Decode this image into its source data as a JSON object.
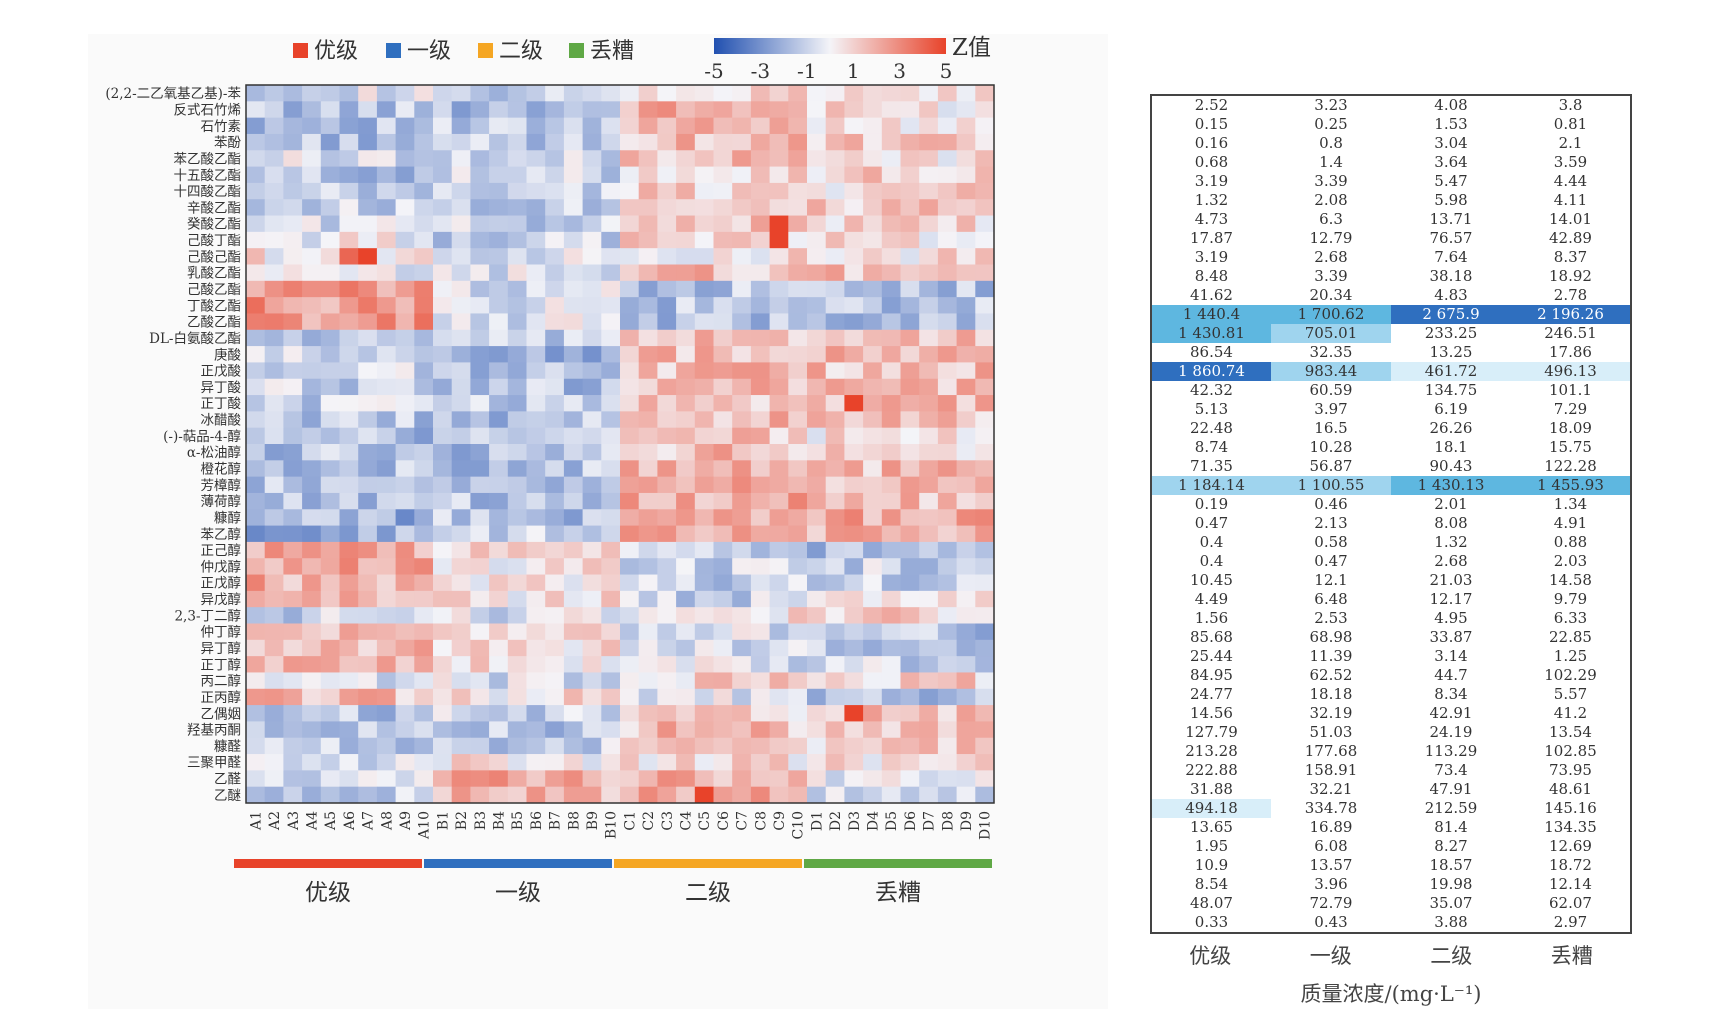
{
  "chart_data": [
    {
      "type": "heatmap",
      "legend": {
        "groups": [
          {
            "label": "优级",
            "color": "#e8432a"
          },
          {
            "label": "一级",
            "color": "#2f6fbf"
          },
          {
            "label": "二级",
            "color": "#f5a623"
          },
          {
            "label": "丢糟",
            "color": "#5fa845"
          }
        ],
        "colorbar_title": "Z值",
        "colorbar_ticks": [
          "-5",
          "-3",
          "-1",
          "1",
          "3",
          "5"
        ],
        "colorbar_range": [
          -5,
          5
        ],
        "colors": {
          "low": "#2150b0",
          "mid": "#f4f4f8",
          "high": "#e8432a"
        }
      },
      "compounds": [
        "(2,2-二乙氧基乙基)-苯",
        "反式石竹烯",
        "石竹素",
        "苯酚",
        "苯乙酸乙酯",
        "十五酸乙酯",
        "十四酸乙酯",
        "辛酸乙酯",
        "癸酸乙酯",
        "己酸丁酯",
        "己酸己酯",
        "乳酸乙酯",
        "己酸乙酯",
        "丁酸乙酯",
        "乙酸乙酯",
        "DL-白氨酸乙酯",
        "庚酸",
        "正戊酸",
        "异丁酸",
        "正丁酸",
        "冰醋酸",
        "(-)-萜品-4-醇",
        "α-松油醇",
        "橙花醇",
        "芳樟醇",
        "薄荷醇",
        "糠醇",
        "苯乙醇",
        "正己醇",
        "仲戊醇",
        "正戊醇",
        "异戊醇",
        "2,3-丁二醇",
        "仲丁醇",
        "异丁醇",
        "正丁醇",
        "丙二醇",
        "正丙醇",
        "乙偶姻",
        "羟基丙酮",
        "糠醛",
        "三聚甲醛",
        "乙醛",
        "乙醚"
      ],
      "samples": [
        "A1",
        "A2",
        "A3",
        "A4",
        "A5",
        "A6",
        "A7",
        "A8",
        "A9",
        "A10",
        "B1",
        "B2",
        "B3",
        "B4",
        "B5",
        "B6",
        "B7",
        "B8",
        "B9",
        "B10",
        "C1",
        "C2",
        "C3",
        "C4",
        "C5",
        "C6",
        "C7",
        "C8",
        "C9",
        "C10",
        "D1",
        "D2",
        "D3",
        "D4",
        "D5",
        "D6",
        "D7",
        "D8",
        "D9",
        "D10"
      ],
      "group_bars": [
        {
          "label": "优级",
          "color": "#e8432a"
        },
        {
          "label": "一级",
          "color": "#2f6fbf"
        },
        {
          "label": "二级",
          "color": "#f5a623"
        },
        {
          "label": "丢糟",
          "color": "#5fa845"
        }
      ],
      "row_group_bias": [
        [
          -0.5,
          -1.5,
          0.5,
          0.5
        ],
        [
          -1.5,
          -1.5,
          2,
          0.5
        ],
        [
          -1.5,
          -1.5,
          1.5,
          0.8
        ],
        [
          -1.5,
          -1.5,
          1.5,
          1
        ],
        [
          -0.5,
          -1,
          1.5,
          0.5
        ],
        [
          -1.5,
          -1,
          1,
          1
        ],
        [
          -1.5,
          -1,
          1,
          0.8
        ],
        [
          -1,
          -1,
          1.5,
          1
        ],
        [
          -0.5,
          -1,
          1.5,
          0.8
        ],
        [
          0,
          -1,
          1,
          0.5
        ],
        [
          0.5,
          -0.5,
          0.5,
          0.5
        ],
        [
          -0.5,
          -0.5,
          1.5,
          1.5
        ],
        [
          2.5,
          -0.5,
          -1.5,
          -1.5
        ],
        [
          2.5,
          -0.5,
          -1.5,
          -1.5
        ],
        [
          2.5,
          -0.5,
          -1.5,
          -1.5
        ],
        [
          -1.5,
          -1.5,
          1.5,
          1.5
        ],
        [
          -1,
          -2,
          1.5,
          1.5
        ],
        [
          -1,
          -1.5,
          1.5,
          1.5
        ],
        [
          -1,
          -1.5,
          1.5,
          1.5
        ],
        [
          -1,
          -1,
          1.5,
          1.5
        ],
        [
          -1.5,
          -1.5,
          1.5,
          1.5
        ],
        [
          -1.5,
          -1.5,
          1.5,
          0.5
        ],
        [
          -1.5,
          -1.5,
          1.5,
          1
        ],
        [
          -1.5,
          -1.5,
          1.5,
          1.5
        ],
        [
          -1.5,
          -1.5,
          2,
          1.5
        ],
        [
          -1.5,
          -1.5,
          2,
          1.5
        ],
        [
          -2,
          -1.5,
          2,
          2
        ],
        [
          -2,
          -1,
          2,
          2
        ],
        [
          2,
          1,
          -1,
          -2
        ],
        [
          2,
          0.5,
          -1,
          -1
        ],
        [
          2,
          0.5,
          -1,
          -1
        ],
        [
          1.5,
          0.5,
          -1,
          0.5
        ],
        [
          -1,
          -0.5,
          0.5,
          1
        ],
        [
          2,
          0.5,
          -0.5,
          -1.5
        ],
        [
          1.5,
          0.5,
          -0.5,
          -1
        ],
        [
          2,
          0.5,
          -0.5,
          -1
        ],
        [
          -1,
          -0.5,
          1,
          1
        ],
        [
          1.5,
          0.5,
          -0.5,
          -1.5
        ],
        [
          -1.5,
          -1,
          1,
          1.5
        ],
        [
          -1.5,
          -1.5,
          1.5,
          1
        ],
        [
          -1,
          -1,
          1.5,
          1
        ],
        [
          -1,
          0.5,
          0.5,
          0.5
        ],
        [
          -0.5,
          2,
          2,
          -0.5
        ],
        [
          -1,
          1.5,
          2,
          -0.5
        ]
      ],
      "hotspots": [
        {
          "row": "己酸己酯",
          "col": "A6",
          "z": 4
        },
        {
          "row": "己酸己酯",
          "col": "A7",
          "z": 5
        },
        {
          "row": "癸酸乙酯",
          "col": "C9",
          "z": 5
        },
        {
          "row": "己酸丁酯",
          "col": "C9",
          "z": 5
        },
        {
          "row": "正丁酸",
          "col": "D3",
          "z": 5
        },
        {
          "row": "乙偶姻",
          "col": "D3",
          "z": 5
        },
        {
          "row": "乙醚",
          "col": "C5",
          "z": 5
        }
      ]
    },
    {
      "type": "table",
      "columns": [
        "优级",
        "一级",
        "二级",
        "丢糟"
      ],
      "axis_label": "质量浓度/(mg·L⁻¹)",
      "rows": [
        [
          "2.52",
          "3.23",
          "4.08",
          "3.8"
        ],
        [
          "0.15",
          "0.25",
          "1.53",
          "0.81"
        ],
        [
          "0.16",
          "0.8",
          "3.04",
          "2.1"
        ],
        [
          "0.68",
          "1.4",
          "3.64",
          "3.59"
        ],
        [
          "3.19",
          "3.39",
          "5.47",
          "4.44"
        ],
        [
          "1.32",
          "2.08",
          "5.98",
          "4.11"
        ],
        [
          "4.73",
          "6.3",
          "13.71",
          "14.01"
        ],
        [
          "17.87",
          "12.79",
          "76.57",
          "42.89"
        ],
        [
          "3.19",
          "2.68",
          "7.64",
          "8.37"
        ],
        [
          "8.48",
          "3.39",
          "38.18",
          "18.92"
        ],
        [
          "41.62",
          "20.34",
          "4.83",
          "2.78"
        ],
        [
          "1 440.4",
          "1 700.62",
          "2 675.9",
          "2 196.26"
        ],
        [
          "1 430.81",
          "705.01",
          "233.25",
          "246.51"
        ],
        [
          "86.54",
          "32.35",
          "13.25",
          "17.86"
        ],
        [
          "1 860.74",
          "983.44",
          "461.72",
          "496.13"
        ],
        [
          "42.32",
          "60.59",
          "134.75",
          "101.1"
        ],
        [
          "5.13",
          "3.97",
          "6.19",
          "7.29"
        ],
        [
          "22.48",
          "16.5",
          "26.26",
          "18.09"
        ],
        [
          "8.74",
          "10.28",
          "18.1",
          "15.75"
        ],
        [
          "71.35",
          "56.87",
          "90.43",
          "122.28"
        ],
        [
          "1 184.14",
          "1 100.55",
          "1 430.13",
          "1 455.93"
        ],
        [
          "0.19",
          "0.46",
          "2.01",
          "1.34"
        ],
        [
          "0.47",
          "2.13",
          "8.08",
          "4.91"
        ],
        [
          "0.4",
          "0.58",
          "1.32",
          "0.88"
        ],
        [
          "0.4",
          "0.47",
          "2.68",
          "2.03"
        ],
        [
          "10.45",
          "12.1",
          "21.03",
          "14.58"
        ],
        [
          "4.49",
          "6.48",
          "12.17",
          "9.79"
        ],
        [
          "1.56",
          "2.53",
          "4.95",
          "6.33"
        ],
        [
          "85.68",
          "68.98",
          "33.87",
          "22.85"
        ],
        [
          "25.44",
          "11.39",
          "3.14",
          "1.25"
        ],
        [
          "84.95",
          "62.52",
          "44.7",
          "102.29"
        ],
        [
          "24.77",
          "18.18",
          "8.34",
          "5.57"
        ],
        [
          "14.56",
          "32.19",
          "42.91",
          "41.2"
        ],
        [
          "127.79",
          "51.03",
          "24.19",
          "13.54"
        ],
        [
          "213.28",
          "177.68",
          "113.29",
          "102.85"
        ],
        [
          "222.88",
          "158.91",
          "73.4",
          "73.95"
        ],
        [
          "31.88",
          "32.21",
          "47.91",
          "48.61"
        ],
        [
          "494.18",
          "334.78",
          "212.59",
          "145.16"
        ],
        [
          "13.65",
          "16.89",
          "81.4",
          "134.35"
        ],
        [
          "1.95",
          "6.08",
          "8.27",
          "12.69"
        ],
        [
          "10.9",
          "13.57",
          "18.57",
          "18.72"
        ],
        [
          "8.54",
          "3.96",
          "19.98",
          "12.14"
        ],
        [
          "48.07",
          "72.79",
          "35.07",
          "62.07"
        ],
        [
          "0.33",
          "0.43",
          "3.88",
          "2.97"
        ]
      ],
      "highlight_colors": {
        "max": "#2f6fbf",
        "high": "#5eb7e0",
        "mid": "#9fd4ee",
        "low": "#d8eef9"
      }
    }
  ]
}
